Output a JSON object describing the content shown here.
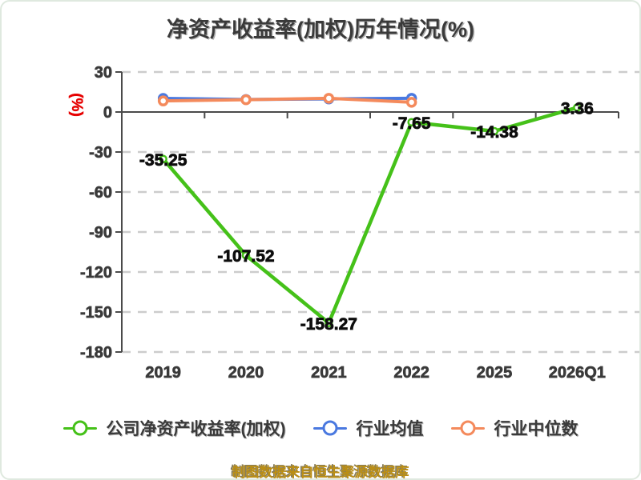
{
  "title": "净资产收益率(加权)历年情况(%)",
  "footer": {
    "text": "制图数据来自恒生聚源数据库"
  },
  "colors": {
    "text-dark": "#3a3a3a",
    "axis": "#4a4a4a",
    "grid": "#cccccc",
    "ylabel-red": "#e60000",
    "footer-gold": "#bb8e14",
    "background": "#ffffff"
  },
  "chart_data": {
    "type": "line",
    "title": "净资产收益率(加权)历年情况(%)",
    "categories": [
      "2019",
      "2020",
      "2021",
      "2022",
      "2025",
      "2026Q1"
    ],
    "series": [
      {
        "name": "公司净资产收益率(加权)",
        "color": "#45c119",
        "values": [
          -35.25,
          -107.52,
          -158.27,
          -7.65,
          -14.38,
          3.36
        ],
        "show_labels": true
      },
      {
        "name": "行业均值",
        "color": "#4a79e0",
        "values": [
          10.2,
          9.4,
          9.8,
          10.3
        ],
        "show_labels": false
      },
      {
        "name": "行业中位数",
        "color": "#f48a5c",
        "values": [
          8.3,
          9.2,
          10.3,
          7.3
        ],
        "show_labels": false
      }
    ],
    "xlabel": "",
    "ylabel": "(%)",
    "yticks": [
      30,
      0,
      -30,
      -60,
      -90,
      -120,
      -150,
      -180
    ],
    "ylim": [
      -180,
      30
    ],
    "grid": "dashed-horizontal",
    "legend_position": "bottom"
  }
}
